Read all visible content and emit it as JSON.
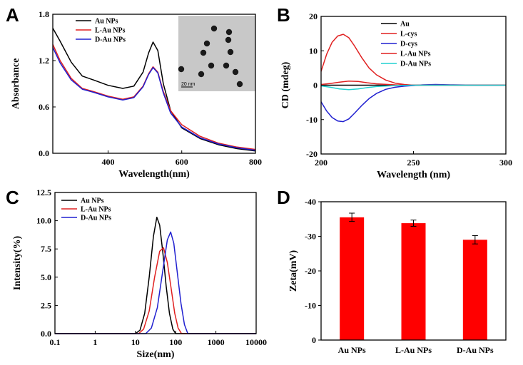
{
  "panels": {
    "A": "A",
    "B": "B",
    "C": "C",
    "D": "D"
  },
  "chart_data": [
    {
      "id": "A",
      "type": "line",
      "xlabel": "Wavelength(nm)",
      "ylabel": "Absorbance",
      "xlim": [
        250,
        800
      ],
      "ylim": [
        0,
        1.8
      ],
      "xticks": [
        400,
        600,
        800
      ],
      "yticks": [
        0.0,
        0.6,
        1.2,
        1.8
      ],
      "ytick_labels": [
        "0.0",
        "0.6",
        "1.2",
        "1.8"
      ],
      "legend_position": "top-left",
      "inset": {
        "scale_label": "20 nm"
      },
      "series": [
        {
          "name": "Au NPs",
          "color": "#000000",
          "x": [
            250,
            270,
            300,
            330,
            360,
            400,
            440,
            470,
            495,
            510,
            522,
            535,
            550,
            570,
            600,
            650,
            700,
            750,
            800
          ],
          "y": [
            1.62,
            1.45,
            1.18,
            1.0,
            0.95,
            0.88,
            0.84,
            0.87,
            1.05,
            1.3,
            1.44,
            1.33,
            0.9,
            0.55,
            0.33,
            0.19,
            0.11,
            0.06,
            0.03
          ]
        },
        {
          "name": "L-Au NPs",
          "color": "#e02020",
          "x": [
            250,
            270,
            300,
            330,
            360,
            400,
            440,
            470,
            495,
            510,
            522,
            535,
            550,
            570,
            600,
            650,
            700,
            750,
            800
          ],
          "y": [
            1.41,
            1.2,
            0.97,
            0.84,
            0.8,
            0.74,
            0.7,
            0.73,
            0.87,
            1.03,
            1.12,
            1.05,
            0.8,
            0.55,
            0.37,
            0.22,
            0.13,
            0.08,
            0.05
          ]
        },
        {
          "name": "D-Au NPs",
          "color": "#2020d0",
          "x": [
            250,
            270,
            300,
            330,
            360,
            400,
            440,
            470,
            495,
            510,
            522,
            535,
            550,
            570,
            600,
            650,
            700,
            750,
            800
          ],
          "y": [
            1.37,
            1.17,
            0.95,
            0.83,
            0.79,
            0.73,
            0.69,
            0.72,
            0.86,
            1.02,
            1.11,
            1.04,
            0.78,
            0.52,
            0.34,
            0.2,
            0.12,
            0.07,
            0.04
          ]
        }
      ]
    },
    {
      "id": "B",
      "type": "line",
      "xlabel": "Wavelength (nm)",
      "ylabel": "CD (mdeg)",
      "xlim": [
        200,
        300
      ],
      "ylim": [
        -20,
        20
      ],
      "xticks": [
        200,
        250,
        300
      ],
      "yticks": [
        -20,
        -10,
        0,
        10,
        20
      ],
      "legend_position": "top-right",
      "series": [
        {
          "name": "Au",
          "color": "#000000",
          "x": [
            200,
            220,
            240,
            260,
            280,
            300
          ],
          "y": [
            0,
            0,
            0,
            0,
            0,
            0
          ]
        },
        {
          "name": "L-cys",
          "color": "#e02020",
          "x": [
            200,
            203,
            206,
            209,
            212,
            215,
            218,
            222,
            226,
            230,
            235,
            240,
            245,
            250,
            260,
            300
          ],
          "y": [
            4.0,
            9.0,
            12.5,
            14.3,
            14.8,
            13.8,
            11.5,
            8.0,
            5.0,
            3.0,
            1.5,
            0.6,
            0.2,
            0,
            0,
            0
          ]
        },
        {
          "name": "D-cys",
          "color": "#2020d0",
          "x": [
            200,
            203,
            206,
            209,
            212,
            215,
            218,
            222,
            226,
            230,
            235,
            240,
            245,
            250,
            255,
            262,
            270,
            285,
            300
          ],
          "y": [
            -4.8,
            -7.5,
            -9.4,
            -10.4,
            -10.6,
            -9.8,
            -8.2,
            -5.9,
            -3.9,
            -2.4,
            -1.2,
            -0.6,
            -0.3,
            -0.1,
            0.1,
            0.2,
            0.1,
            0,
            0
          ]
        },
        {
          "name": "L-Au NPs",
          "color": "#e02020",
          "x": [
            200,
            205,
            210,
            215,
            220,
            225,
            230,
            240,
            250,
            300
          ],
          "y": [
            0.2,
            0.5,
            0.9,
            1.2,
            1.1,
            0.7,
            0.4,
            0.1,
            0,
            0
          ]
        },
        {
          "name": "D-Au NPs",
          "color": "#20d0d0",
          "x": [
            200,
            205,
            210,
            215,
            220,
            225,
            230,
            240,
            250,
            300
          ],
          "y": [
            -0.2,
            -0.6,
            -1.1,
            -1.3,
            -1.1,
            -0.7,
            -0.4,
            -0.1,
            0,
            0
          ]
        }
      ]
    },
    {
      "id": "C",
      "type": "line",
      "xlabel": "Size(nm)",
      "ylabel": "Intensity(%)",
      "xscale": "log",
      "xlim": [
        0.1,
        10000
      ],
      "ylim": [
        0,
        12.5
      ],
      "xticks": [
        0.1,
        1,
        10,
        100,
        1000,
        10000
      ],
      "xtick_labels": [
        "0.1",
        "1",
        "10",
        "100",
        "1000",
        "10000"
      ],
      "yticks": [
        0.0,
        2.5,
        5.0,
        7.5,
        10.0,
        12.5
      ],
      "ytick_labels": [
        "0.0",
        "2.5",
        "5.0",
        "7.5",
        "10.0",
        "12.5"
      ],
      "legend_position": "top-left",
      "series": [
        {
          "name": "Au NPs",
          "color": "#000000",
          "x": [
            0.1,
            10,
            13,
            17,
            22,
            28,
            34,
            40,
            48,
            58,
            70,
            85,
            100,
            10000
          ],
          "y": [
            0,
            0,
            0.3,
            1.8,
            5.0,
            8.6,
            10.3,
            9.6,
            7.2,
            4.2,
            1.8,
            0.4,
            0,
            0
          ]
        },
        {
          "name": "L-Au NPs",
          "color": "#e02020",
          "x": [
            0.1,
            12,
            16,
            22,
            30,
            40,
            50,
            62,
            78,
            95,
            115,
            140,
            10000
          ],
          "y": [
            0,
            0,
            0.4,
            2.0,
            5.0,
            7.3,
            7.6,
            6.3,
            3.9,
            1.8,
            0.5,
            0,
            0
          ]
        },
        {
          "name": "D-Au NPs",
          "color": "#2020d0",
          "x": [
            0.1,
            18,
            25,
            35,
            48,
            62,
            75,
            90,
            110,
            135,
            165,
            200,
            10000
          ],
          "y": [
            0,
            0,
            0.5,
            2.3,
            5.6,
            8.3,
            9.0,
            8.0,
            5.4,
            2.7,
            0.8,
            0,
            0
          ]
        }
      ]
    },
    {
      "id": "D",
      "type": "bar",
      "xlabel": "",
      "ylabel": "Zeta(mV)",
      "ylim": [
        0,
        -40
      ],
      "yticks": [
        0,
        -10,
        -20,
        -30,
        -40
      ],
      "categories": [
        "Au NPs",
        "L-Au NPs",
        "D-Au NPs"
      ],
      "values": [
        -35.5,
        -33.8,
        -29.0
      ],
      "errors": [
        1.2,
        0.9,
        1.2
      ],
      "color": "#ff0000"
    }
  ]
}
